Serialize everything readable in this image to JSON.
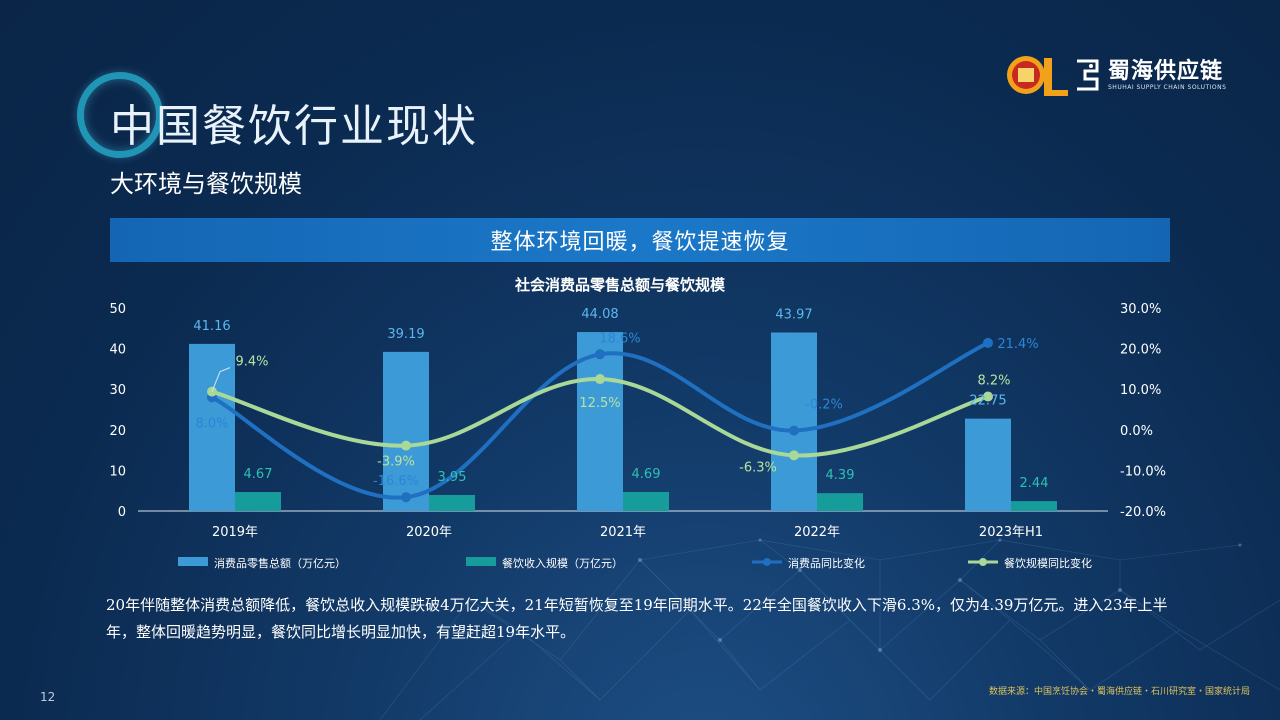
{
  "title": "中国餐饮行业现状",
  "subtitle": "大环境与餐饮规模",
  "logo": {
    "name": "蜀海供应链",
    "name_en": "SHUHAI SUPPLY CHAIN SOLUTIONS"
  },
  "banner": "整体环境回暖，餐饮提速恢复",
  "description": "20年伴随整体消费总额降低，餐饮总收入规模跌破4万亿大关，21年短暂恢复至19年同期水平。22年全国餐饮收入下滑6.3%，仅为4.39万亿元。进入23年上半年，整体回暖趋势明显，餐饮同比增长明显加快，有望赶超19年水平。",
  "page_number": "12",
  "source": "数据来源：中国烹饪协会・蜀海供应链・石川研究室・国家统计局",
  "colors": {
    "bar_retail": "#3c9ad6",
    "bar_catering": "#169c9a",
    "line_retail": "#1f70c1",
    "line_catering": "#a9d898"
  },
  "chart_data": {
    "type": "bar",
    "title": "社会消费品零售总额与餐饮规模",
    "categories": [
      "2019年",
      "2020年",
      "2021年",
      "2022年",
      "2023年H1"
    ],
    "y_left": {
      "min": 0,
      "max": 50,
      "ticks": [
        "0",
        "10",
        "20",
        "30",
        "40",
        "50"
      ]
    },
    "y_right": {
      "min": -20,
      "max": 30,
      "ticks": [
        "-20.0%",
        "-10.0%",
        "0.0%",
        "10.0%",
        "20.0%",
        "30.0%"
      ]
    },
    "series": [
      {
        "name": "消费品零售总额（万亿元）",
        "kind": "bar",
        "axis": "left",
        "values": [
          41.16,
          39.19,
          44.08,
          43.97,
          22.75
        ],
        "labels": [
          "41.16",
          "39.19",
          "44.08",
          "43.97",
          "22.75"
        ]
      },
      {
        "name": "餐饮收入规模（万亿元）",
        "kind": "bar",
        "axis": "left",
        "values": [
          4.67,
          3.95,
          4.69,
          4.39,
          2.44
        ],
        "labels": [
          "4.67",
          "3.95",
          "4.69",
          "4.39",
          "2.44"
        ]
      },
      {
        "name": "消费品同比变化",
        "kind": "line",
        "axis": "right",
        "values": [
          8.0,
          -16.6,
          18.6,
          -0.2,
          21.4
        ],
        "labels": [
          "8.0%",
          "-16.6%",
          "18.6%",
          "-0.2%",
          "21.4%"
        ]
      },
      {
        "name": "餐饮规模同比变化",
        "kind": "line",
        "axis": "right",
        "values": [
          9.4,
          -3.9,
          12.5,
          -6.3,
          8.2
        ],
        "labels": [
          "9.4%",
          "-3.9%",
          "12.5%",
          "-6.3%",
          "8.2%"
        ]
      }
    ],
    "legend_position": "bottom"
  }
}
